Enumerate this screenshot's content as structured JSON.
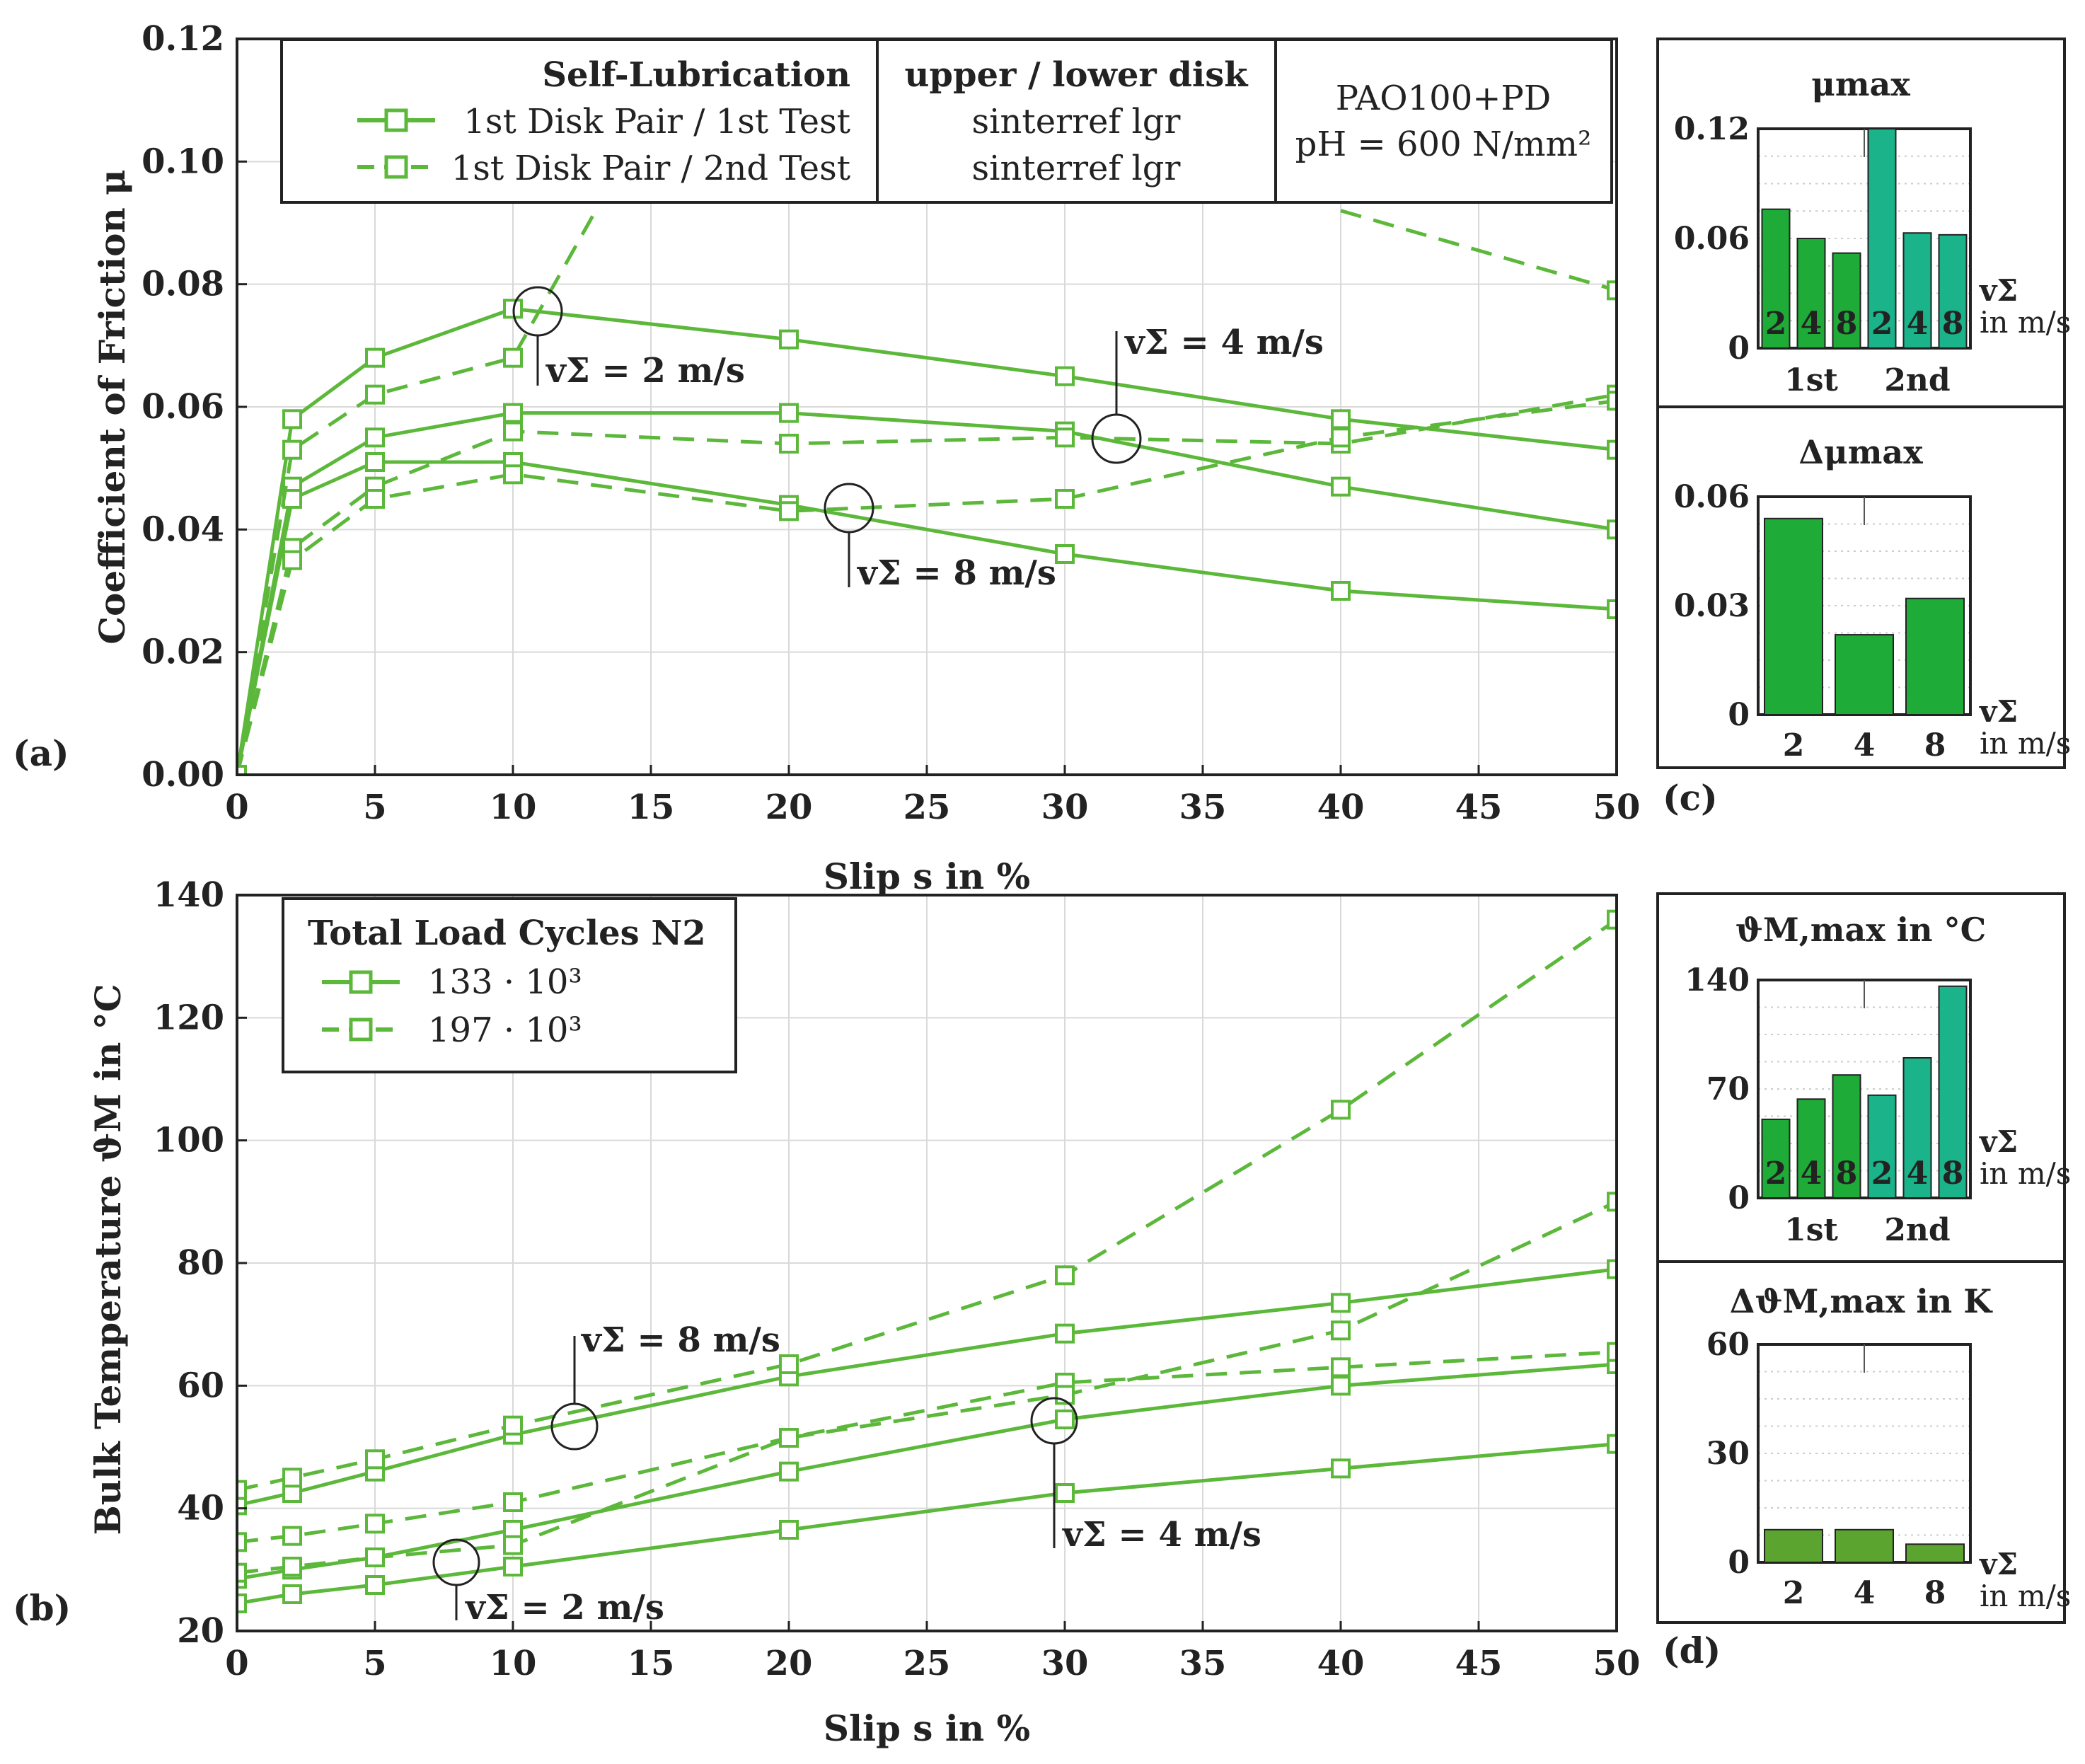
{
  "colors": {
    "series": "#5cb83a",
    "bar_1st": "#1eab37",
    "bar_2nd": "#1ab38a",
    "bar_delta_theta": "#5ba42f",
    "grid": "#d9d9d9",
    "text": "#222222"
  },
  "panel_labels": {
    "a": "(a)",
    "b": "(b)",
    "c": "(c)",
    "d": "(d)"
  },
  "chart_data": [
    {
      "id": "a",
      "type": "line",
      "xlabel": "Slip s in %",
      "ylabel": "Coefficient of Friction μ",
      "xlim": [
        0,
        50
      ],
      "ylim": [
        0,
        0.12
      ],
      "xticks": [
        "0",
        "5",
        "10",
        "15",
        "20",
        "25",
        "30",
        "35",
        "40",
        "45",
        "50"
      ],
      "yticks": [
        "0.00",
        "0.02",
        "0.04",
        "0.06",
        "0.08",
        "0.10",
        "0.12"
      ],
      "legend": {
        "title": "Self-Lubrication",
        "entries": [
          {
            "label": "1st Disk Pair / 1st Test",
            "style": "solid"
          },
          {
            "label": "1st Disk Pair / 2nd Test",
            "style": "dashed"
          }
        ],
        "col2_title": "upper / lower disk",
        "col2_line1": "sinterref lgr",
        "col2_line2": "sinterref lgr",
        "col3_line1": "PAO100+PD",
        "col3_line2": "pH = 600 N/mm²"
      },
      "annotations": {
        "v2": "vΣ = 2 m/s",
        "v4": "vΣ = 4 m/s",
        "v8": "vΣ = 8 m/s"
      },
      "series": [
        {
          "name": "1st Test, vΣ = 2 m/s",
          "style": "solid",
          "x": [
            0,
            2,
            5,
            10,
            20,
            30,
            40,
            50
          ],
          "y": [
            0,
            0.058,
            0.068,
            0.076,
            0.071,
            0.065,
            0.058,
            0.053
          ]
        },
        {
          "name": "1st Test, vΣ = 4 m/s",
          "style": "solid",
          "x": [
            0,
            2,
            5,
            10,
            20,
            30,
            40,
            50
          ],
          "y": [
            0,
            0.047,
            0.055,
            0.059,
            0.059,
            0.056,
            0.047,
            0.04
          ]
        },
        {
          "name": "1st Test, vΣ = 8 m/s",
          "style": "solid",
          "x": [
            0,
            2,
            5,
            10,
            20,
            30,
            40,
            50
          ],
          "y": [
            0,
            0.045,
            0.051,
            0.051,
            0.044,
            0.036,
            0.03,
            0.027
          ]
        },
        {
          "name": "2nd Test, vΣ = 2 m/s",
          "style": "dashed",
          "x": [
            0,
            2,
            5,
            10,
            13
          ],
          "y": [
            0,
            0.053,
            0.062,
            0.068,
            0.092
          ]
        },
        {
          "name": "2nd Test, vΣ = 2 m/s (continued)",
          "style": "dashed",
          "x": [
            40,
            50
          ],
          "y": [
            0.092,
            0.079
          ]
        },
        {
          "name": "2nd Test, vΣ = 4 m/s",
          "style": "dashed",
          "x": [
            0,
            2,
            5,
            10,
            20,
            30,
            40,
            50
          ],
          "y": [
            0,
            0.037,
            0.047,
            0.056,
            0.054,
            0.055,
            0.054,
            0.062
          ]
        },
        {
          "name": "2nd Test, vΣ = 8 m/s",
          "style": "dashed",
          "x": [
            0,
            2,
            5,
            10,
            20,
            30,
            40,
            50
          ],
          "y": [
            0,
            0.035,
            0.045,
            0.049,
            0.043,
            0.045,
            0.055,
            0.061
          ]
        }
      ]
    },
    {
      "id": "b",
      "type": "line",
      "xlabel": "Slip s in %",
      "ylabel": "Bulk Temperature ϑM in °C",
      "xlim": [
        0,
        50
      ],
      "ylim": [
        20,
        140
      ],
      "xticks": [
        "0",
        "5",
        "10",
        "15",
        "20",
        "25",
        "30",
        "35",
        "40",
        "45",
        "50"
      ],
      "yticks": [
        "20",
        "40",
        "60",
        "80",
        "100",
        "120",
        "140"
      ],
      "legend": {
        "title": "Total Load Cycles N2",
        "entries": [
          {
            "label": "133 · 10³",
            "style": "solid"
          },
          {
            "label": "197 · 10³",
            "style": "dashed"
          }
        ]
      },
      "annotations": {
        "v2": "vΣ = 2 m/s",
        "v4": "vΣ = 4 m/s",
        "v8": "vΣ = 8 m/s"
      },
      "series": [
        {
          "name": "133·10³, vΣ = 8 m/s",
          "style": "solid",
          "x": [
            0,
            2,
            5,
            10,
            20,
            30,
            40,
            50
          ],
          "y": [
            40.5,
            42.5,
            46,
            52,
            61.5,
            68.5,
            73.5,
            79
          ]
        },
        {
          "name": "133·10³, vΣ = 4 m/s",
          "style": "solid",
          "x": [
            0,
            2,
            5,
            10,
            20,
            30,
            40,
            50
          ],
          "y": [
            28.5,
            30,
            32,
            36.5,
            46,
            54.5,
            60,
            63.5
          ]
        },
        {
          "name": "133·10³, vΣ = 2 m/s",
          "style": "solid",
          "x": [
            0,
            2,
            5,
            10,
            20,
            30,
            40,
            50
          ],
          "y": [
            24.5,
            26,
            27.5,
            30.5,
            36.5,
            42.5,
            46.5,
            50.5
          ]
        },
        {
          "name": "197·10³, vΣ = 8 m/s",
          "style": "dashed",
          "x": [
            0,
            2,
            5,
            10,
            20,
            30,
            40,
            50
          ],
          "y": [
            43,
            45,
            48,
            53.5,
            63.5,
            78,
            105,
            136
          ]
        },
        {
          "name": "197·10³, vΣ = 4 m/s",
          "style": "dashed",
          "x": [
            0,
            2,
            5,
            10,
            20,
            30,
            40,
            50
          ],
          "y": [
            34.5,
            35.5,
            37.5,
            41,
            51.5,
            60.5,
            63,
            65.5
          ]
        },
        {
          "name": "197·10³, vΣ = 2 m/s",
          "style": "dashed",
          "x": [
            0,
            2,
            5,
            10,
            20,
            30,
            40,
            50
          ],
          "y": [
            29.5,
            30.5,
            32,
            34,
            51.5,
            58.5,
            69,
            90
          ]
        }
      ]
    },
    {
      "id": "c_top",
      "type": "bar",
      "title": "μmax",
      "ylim": [
        0,
        0.12
      ],
      "yticks": [
        "0",
        "0.06",
        "0.12"
      ],
      "bar_labels": [
        "2",
        "4",
        "8",
        "2",
        "4",
        "8"
      ],
      "groups": [
        "1st",
        "2nd"
      ],
      "values": [
        0.076,
        0.06,
        0.052,
        0.12,
        0.063,
        0.062
      ],
      "xlabel": "vΣ",
      "xunit": "in m/s"
    },
    {
      "id": "c_bottom",
      "type": "bar",
      "title": "Δμmax",
      "ylim": [
        0,
        0.06
      ],
      "yticks": [
        "0",
        "0.03",
        "0.06"
      ],
      "categories": [
        "2",
        "4",
        "8"
      ],
      "values": [
        0.054,
        0.022,
        0.032
      ],
      "xlabel": "vΣ",
      "xunit": "in m/s"
    },
    {
      "id": "d_top",
      "type": "bar",
      "title": "ϑM,max in °C",
      "ylim": [
        0,
        140
      ],
      "yticks": [
        "0",
        "70",
        "140"
      ],
      "bar_labels": [
        "2",
        "4",
        "8",
        "2",
        "4",
        "8"
      ],
      "groups": [
        "1st",
        "2nd"
      ],
      "values": [
        50.5,
        63.5,
        79,
        66,
        90,
        136
      ],
      "xlabel": "vΣ",
      "xunit": "in m/s"
    },
    {
      "id": "d_bottom",
      "type": "bar",
      "title": "ΔϑM,max in K",
      "ylim": [
        0,
        60
      ],
      "yticks": [
        "0",
        "30",
        "60"
      ],
      "categories": [
        "2",
        "4",
        "8"
      ],
      "values": [
        9,
        9,
        5
      ],
      "xlabel": "vΣ",
      "xunit": "in m/s"
    }
  ]
}
